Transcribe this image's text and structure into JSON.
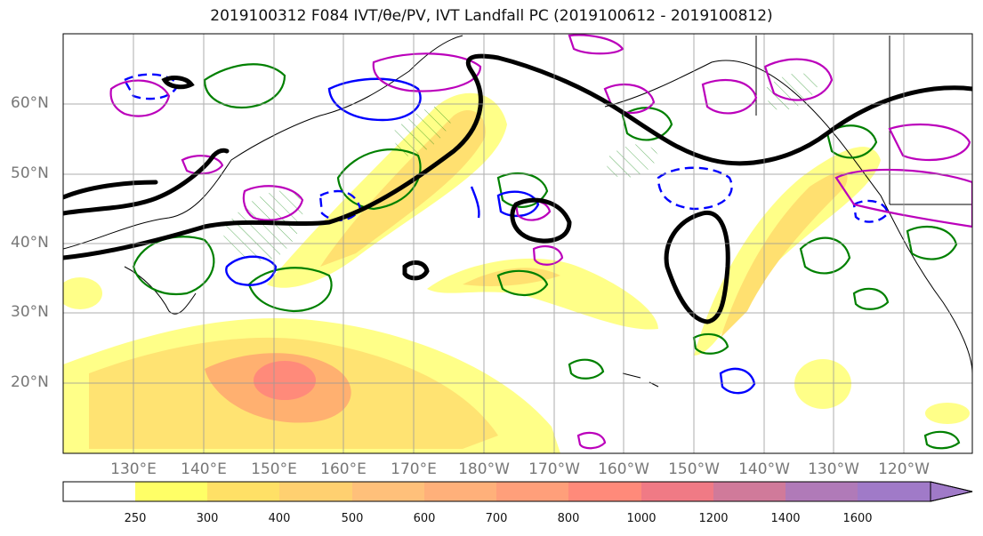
{
  "title": "2019100312 F084 IVT/θe/PV, IVT Landfall PC (2019100612 - 2019100812)",
  "lat_labels": [
    "60°N",
    "50°N",
    "40°N",
    "30°N",
    "20°N"
  ],
  "lon_labels": [
    "130°E",
    "140°E",
    "150°E",
    "160°E",
    "170°E",
    "180°W",
    "170°W",
    "160°W",
    "150°W",
    "140°W",
    "130°W",
    "120°W"
  ],
  "colorbar": {
    "labels": [
      "250",
      "300",
      "400",
      "500",
      "600",
      "700",
      "800",
      "1000",
      "1200",
      "1400",
      "1600"
    ],
    "colors": [
      "#ffffff",
      "#ffff66",
      "#ffe066",
      "#ffd070",
      "#ffc07a",
      "#ffb07a",
      "#ff9f7a",
      "#ff8a7a",
      "#f07a85",
      "#d07a9a",
      "#b07ab8",
      "#a07ac8"
    ]
  },
  "legend_colors": {
    "ivt_fill": "#ffd070",
    "theta_e": "#008000",
    "pv_positive": "#0000ff",
    "pc": "#bb00bb",
    "jet": "#000000"
  }
}
